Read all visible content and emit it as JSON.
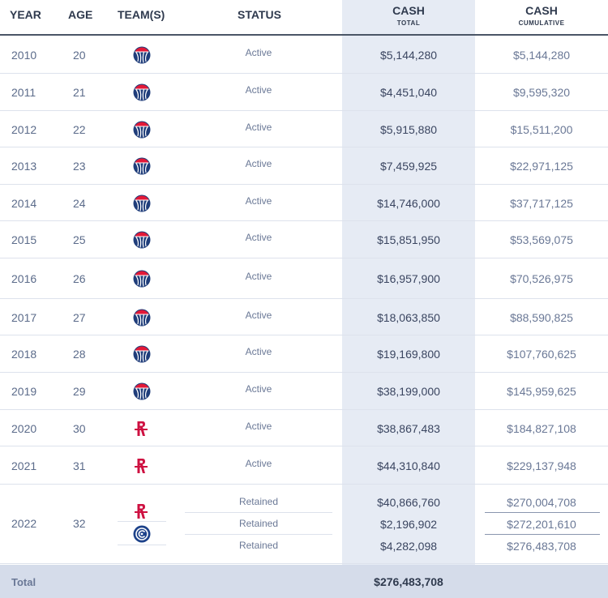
{
  "header": {
    "year": "YEAR",
    "age": "AGE",
    "teams": "TEAM(S)",
    "status": "STATUS",
    "cash_total": "CASH",
    "cash_total_sub": "TOTAL",
    "cash_cumulative": "CASH",
    "cash_cumulative_sub": "CUMULATIVE"
  },
  "rows": [
    {
      "year": "2010",
      "age": "20",
      "team_icon": "wizards-logo-icon",
      "status": "Active",
      "total": "$5,144,280",
      "cumulative": "$5,144,280"
    },
    {
      "year": "2011",
      "age": "21",
      "team_icon": "wizards-logo-icon",
      "status": "Active",
      "total": "$4,451,040",
      "cumulative": "$9,595,320"
    },
    {
      "year": "2012",
      "age": "22",
      "team_icon": "wizards-logo-icon",
      "status": "Active",
      "total": "$5,915,880",
      "cumulative": "$15,511,200"
    },
    {
      "year": "2013",
      "age": "23",
      "team_icon": "wizards-logo-icon",
      "status": "Active",
      "total": "$7,459,925",
      "cumulative": "$22,971,125"
    },
    {
      "year": "2014",
      "age": "24",
      "team_icon": "wizards-logo-icon",
      "status": "Active",
      "total": "$14,746,000",
      "cumulative": "$37,717,125"
    },
    {
      "year": "2015",
      "age": "25",
      "team_icon": "wizards-logo-icon",
      "status": "Active",
      "total": "$15,851,950",
      "cumulative": "$53,569,075"
    },
    {
      "year": "2016",
      "age": "26",
      "team_icon": "wizards-logo-icon",
      "status": "Active",
      "total": "$16,957,900",
      "cumulative": "$70,526,975"
    },
    {
      "year": "2017",
      "age": "27",
      "team_icon": "wizards-logo-icon",
      "status": "Active",
      "total": "$18,063,850",
      "cumulative": "$88,590,825"
    },
    {
      "year": "2018",
      "age": "28",
      "team_icon": "wizards-logo-icon",
      "status": "Active",
      "total": "$19,169,800",
      "cumulative": "$107,760,625"
    },
    {
      "year": "2019",
      "age": "29",
      "team_icon": "wizards-logo-icon",
      "status": "Active",
      "total": "$38,199,000",
      "cumulative": "$145,959,625"
    },
    {
      "year": "2020",
      "age": "30",
      "team_icon": "rockets-logo-icon",
      "status": "Active",
      "total": "$38,867,483",
      "cumulative": "$184,827,108"
    },
    {
      "year": "2021",
      "age": "31",
      "team_icon": "rockets-logo-icon",
      "status": "Active",
      "total": "$44,310,840",
      "cumulative": "$229,137,948"
    }
  ],
  "row_2022": {
    "year": "2022",
    "age": "32",
    "team_icons": [
      "rockets-logo-icon",
      "clippers-logo-icon"
    ],
    "entries": [
      {
        "status": "Retained",
        "total": "$40,866,760",
        "cumulative": "$270,004,708"
      },
      {
        "status": "Retained",
        "total": "$2,196,902",
        "cumulative": "$272,201,610"
      },
      {
        "status": "Retained",
        "total": "$4,282,098",
        "cumulative": "$276,483,708"
      }
    ]
  },
  "footer": {
    "label": "Total",
    "total": "$276,483,708"
  },
  "colors": {
    "highlight_column": "#e6ebf4",
    "footer_bg": "#d5dcea",
    "wizards_navy": "#1f3d7a",
    "wizards_red": "#e31837",
    "rockets_red": "#ce1141",
    "clippers_navy": "#1d428a"
  }
}
